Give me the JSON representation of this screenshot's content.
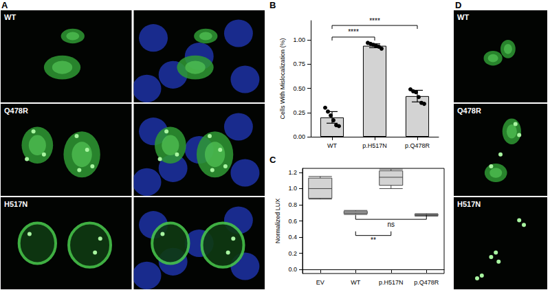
{
  "panels": {
    "A": {
      "letter": "A",
      "rows": [
        "WT",
        "Q478R",
        "H517N"
      ]
    },
    "D": {
      "letter": "D",
      "rows": [
        "WT",
        "Q478R",
        "H517N"
      ]
    }
  },
  "chart_data": [
    {
      "panel": "B",
      "type": "bar",
      "categories": [
        "WT",
        "p.H517N",
        "p.Q478R"
      ],
      "values": [
        0.2,
        0.94,
        0.42
      ],
      "error": [
        0.06,
        0.02,
        0.06
      ],
      "points": [
        [
          0.3,
          0.26,
          0.22,
          0.17,
          0.12,
          0.11
        ],
        [
          0.97,
          0.96,
          0.95,
          0.94,
          0.93,
          0.91
        ],
        [
          0.49,
          0.47,
          0.46,
          0.41,
          0.35,
          0.34
        ]
      ],
      "ylabel": "Cells With Mislocalization (%)",
      "ylim": [
        0,
        1.2
      ],
      "yticks": [
        {
          "value": 0,
          "label": "0.00"
        },
        0.25,
        {
          "value": 0.5,
          "label": "0.50"
        },
        0.75,
        {
          "value": 1,
          "label": "1.00"
        }
      ],
      "color": "#d3d3d3",
      "grid": false,
      "annotations": [
        {
          "from": "WT",
          "to": "p.H517N",
          "y": 1.03,
          "label": "****"
        },
        {
          "from": "WT",
          "to": "p.Q478R",
          "y": 1.15,
          "label": "****"
        }
      ]
    },
    {
      "panel": "C",
      "type": "boxplot",
      "categories": [
        "EV",
        "WT",
        "p.H517N",
        "p.Q478R"
      ],
      "values": [
        {
          "min": 0.87,
          "q1": 0.88,
          "median": 1.0,
          "q3": 1.13,
          "max": 1.15
        },
        {
          "min": 0.68,
          "q1": 0.69,
          "median": 0.7,
          "q3": 0.72,
          "max": 0.73
        },
        {
          "min": 1.0,
          "q1": 1.04,
          "median": 1.14,
          "q3": 1.22,
          "max": 1.24
        },
        {
          "min": 0.66,
          "q1": 0.67,
          "median": 0.675,
          "q3": 0.68,
          "max": 0.69
        }
      ],
      "ylabel": "Normalized LUX",
      "ylim": [
        -0.05,
        1.25
      ],
      "yticks": [
        {
          "value": 0,
          "label": "0.0"
        },
        0.2,
        0.4,
        0.6,
        0.8,
        {
          "value": 1,
          "label": "1.0"
        },
        1.2
      ],
      "color": "#d3d3d3",
      "grid": false,
      "annotations": [
        {
          "from": "WT",
          "to": "p.H517N",
          "y": 0.42,
          "label": "**"
        },
        {
          "from": "WT",
          "to": "p.Q478R",
          "y": 0.62,
          "label": "ns"
        }
      ]
    }
  ]
}
